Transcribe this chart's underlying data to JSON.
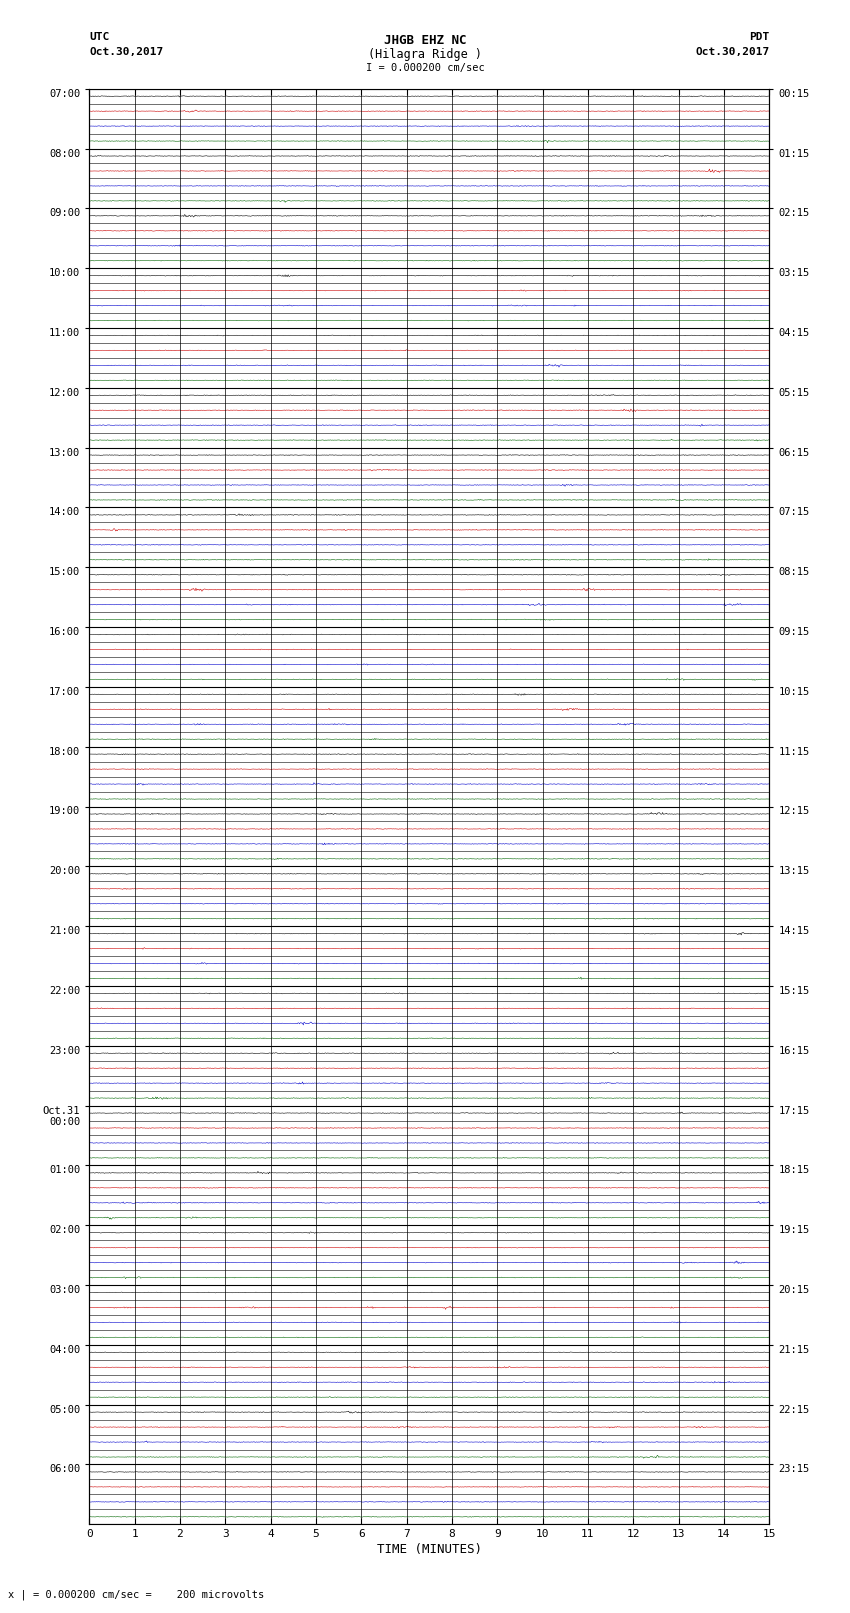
{
  "title_line1": "JHGB EHZ NC",
  "title_line2": "(Hilagra Ridge )",
  "title_line3": "I = 0.000200 cm/sec",
  "left_header_line1": "UTC",
  "left_header_line2": "Oct.30,2017",
  "right_header_line1": "PDT",
  "right_header_line2": "Oct.30,2017",
  "bottom_label": "TIME (MINUTES)",
  "bottom_note": "x | = 0.000200 cm/sec =    200 microvolts",
  "minutes_per_row": 15,
  "num_major_rows": 24,
  "sub_rows_per_major": 4,
  "background_color": "#ffffff",
  "trace_color_black": "#000000",
  "trace_color_blue": "#0000cc",
  "trace_color_red": "#cc0000",
  "trace_color_green": "#006600",
  "grid_color_major": "#000000",
  "grid_color_minor": "#000000",
  "fig_width": 8.5,
  "fig_height": 16.13,
  "left_major_labels": [
    "07:00",
    "08:00",
    "09:00",
    "10:00",
    "11:00",
    "12:00",
    "13:00",
    "14:00",
    "15:00",
    "16:00",
    "17:00",
    "18:00",
    "19:00",
    "20:00",
    "21:00",
    "22:00",
    "23:00",
    "Oct.31\n00:00",
    "01:00",
    "02:00",
    "03:00",
    "04:00",
    "05:00",
    "06:00"
  ],
  "right_major_labels": [
    "00:15",
    "01:15",
    "02:15",
    "03:15",
    "04:15",
    "05:15",
    "06:15",
    "07:15",
    "08:15",
    "09:15",
    "10:15",
    "11:15",
    "12:15",
    "13:15",
    "14:15",
    "15:15",
    "16:15",
    "17:15",
    "18:15",
    "19:15",
    "20:15",
    "21:15",
    "22:15",
    "23:15"
  ],
  "x_ticks": [
    0,
    1,
    2,
    3,
    4,
    5,
    6,
    7,
    8,
    9,
    10,
    11,
    12,
    13,
    14,
    15
  ],
  "seed": 123
}
